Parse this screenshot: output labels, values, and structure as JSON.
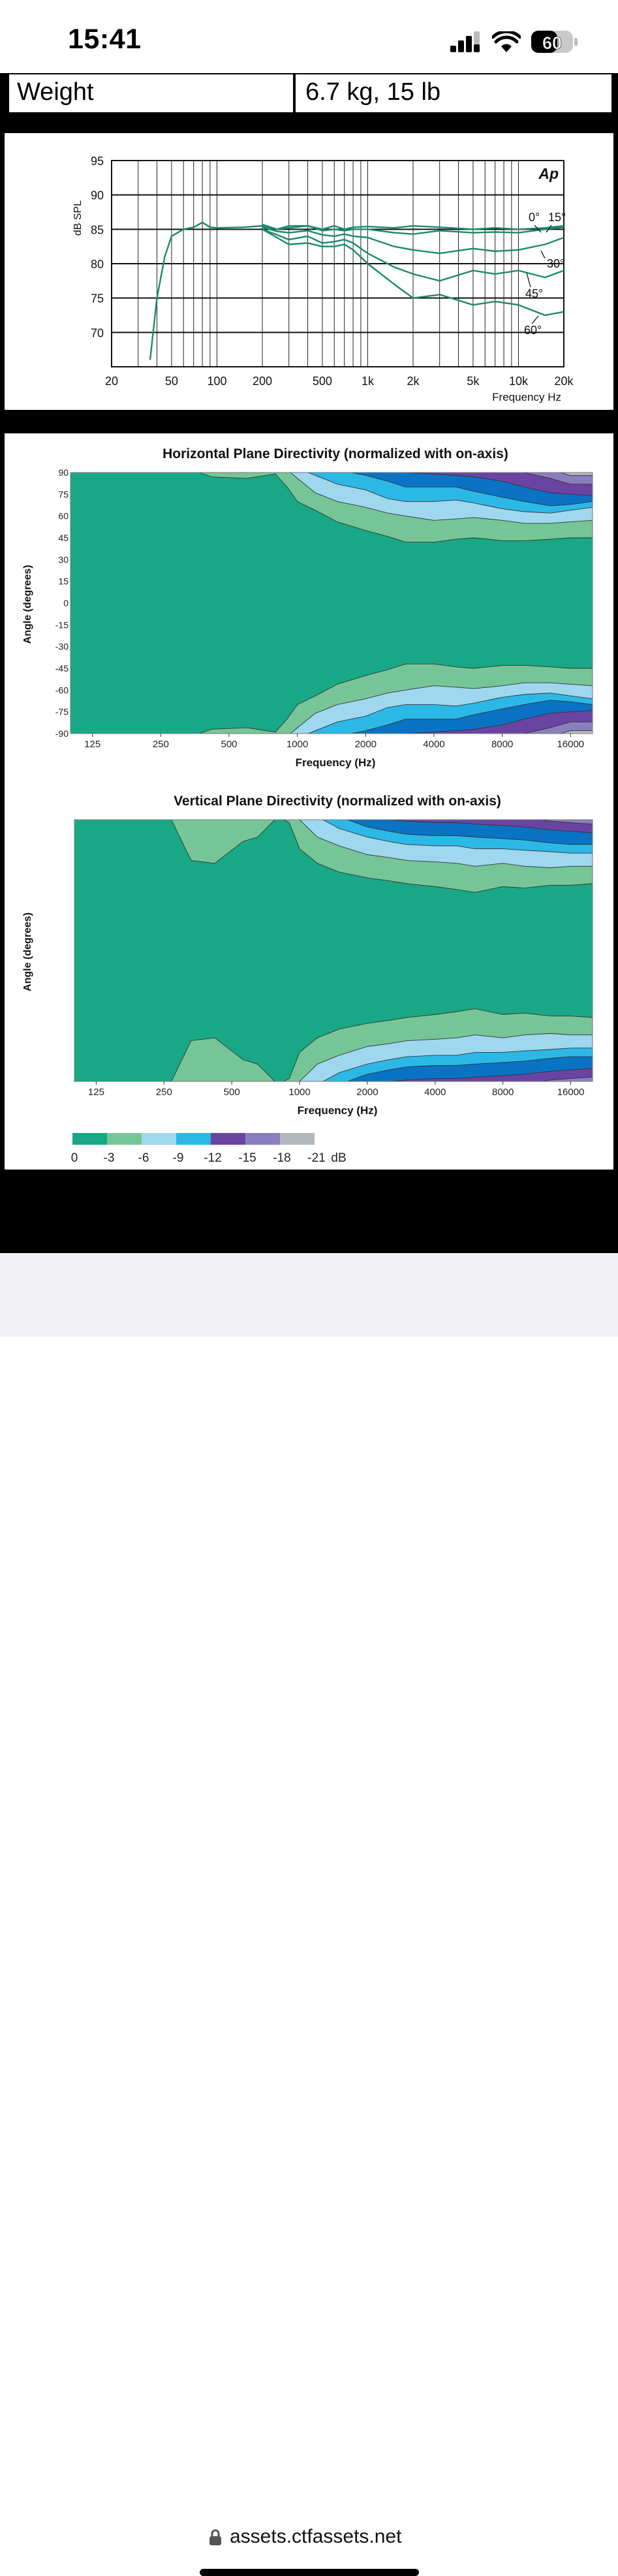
{
  "status_bar": {
    "time": "15:41",
    "battery": "60"
  },
  "spec_row": {
    "label": "Weight",
    "value": "6.7 kg, 15 lb"
  },
  "browser": {
    "url": "assets.ctfassets.net"
  },
  "colors": {
    "curve": "#1a8a6a",
    "levels": [
      "#18a886",
      "#76c597",
      "#9fd7ef",
      "#2cb8e6",
      "#0a73c4",
      "#6a44a2",
      "#8a7fbc",
      "#b4b9bd"
    ]
  },
  "chart_data": [
    {
      "type": "line",
      "title": "",
      "xlabel": "Frequency Hz",
      "ylabel": "dB SPL",
      "x_scale": "log",
      "xlim": [
        20,
        20000
      ],
      "ylim": [
        65,
        95
      ],
      "x_ticks": [
        20,
        50,
        100,
        200,
        500,
        1000,
        2000,
        5000,
        10000,
        20000
      ],
      "x_tick_labels": [
        "20",
        "50",
        "100",
        "200",
        "500",
        "1k",
        "2k",
        "5k",
        "10k",
        "20k"
      ],
      "y_ticks": [
        70,
        75,
        80,
        85,
        90,
        95
      ],
      "y_tick_labels": [
        "70",
        "75",
        "80",
        "85",
        "90",
        "95"
      ],
      "logo": "Ap",
      "grid": true,
      "series": [
        {
          "name": "0°",
          "x": [
            36,
            40,
            45,
            50,
            60,
            70,
            80,
            90,
            100,
            150,
            200,
            250,
            300,
            400,
            500,
            600,
            700,
            800,
            1000,
            1500,
            2000,
            3000,
            5000,
            7000,
            10000,
            15000,
            20000
          ],
          "y": [
            66,
            75,
            81,
            84,
            85,
            85.3,
            86,
            85.3,
            85.2,
            85.3,
            85.5,
            85,
            85.5,
            85.5,
            85,
            85.5,
            85,
            85.3,
            85.4,
            85.2,
            85.5,
            85.3,
            85,
            85.2,
            85,
            85.2,
            85.5
          ]
        },
        {
          "name": "15°",
          "x": [
            200,
            250,
            300,
            400,
            500,
            600,
            700,
            800,
            1000,
            1500,
            2000,
            3000,
            5000,
            7000,
            10000,
            15000,
            20000
          ],
          "y": [
            85.7,
            85,
            85.2,
            85.5,
            84.8,
            85,
            84.8,
            85,
            85,
            84.5,
            84.3,
            84.8,
            84.5,
            84.6,
            84.5,
            85,
            85.3
          ]
        },
        {
          "name": "30°",
          "x": [
            200,
            250,
            300,
            400,
            500,
            600,
            700,
            800,
            1000,
            1500,
            2000,
            3000,
            5000,
            7000,
            10000,
            15000,
            20000
          ],
          "y": [
            85.3,
            84.7,
            84.5,
            84.8,
            84.2,
            84,
            84.3,
            84,
            83.8,
            82.5,
            82,
            81.5,
            82.2,
            81.8,
            82,
            82.8,
            83.8
          ]
        },
        {
          "name": "45°",
          "x": [
            200,
            250,
            300,
            400,
            500,
            600,
            700,
            800,
            1000,
            1500,
            2000,
            3000,
            5000,
            7000,
            10000,
            15000,
            20000
          ],
          "y": [
            85,
            84.2,
            83.5,
            84,
            83,
            83.2,
            83.5,
            83,
            81.5,
            79.5,
            78.5,
            77.5,
            79,
            78.5,
            79,
            78,
            79
          ]
        },
        {
          "name": "60°",
          "x": [
            200,
            250,
            300,
            400,
            500,
            600,
            700,
            800,
            1000,
            1500,
            2000,
            3000,
            5000,
            7000,
            10000,
            15000,
            20000
          ],
          "y": [
            85,
            83.8,
            82.8,
            83,
            82.5,
            82.5,
            82.8,
            82,
            80,
            77,
            75,
            75.5,
            74,
            74.5,
            74,
            72.5,
            73
          ]
        }
      ]
    },
    {
      "type": "heatmap",
      "title": "Horizontal Plane Directivity (normalized with on-axis)",
      "xlabel": "Frequency (Hz)",
      "ylabel": "Angle (degrees)",
      "x_scale": "log",
      "xlim": [
        100,
        20000
      ],
      "ylim": [
        -90,
        90
      ],
      "x_ticks": [
        125,
        250,
        500,
        1000,
        2000,
        4000,
        8000,
        16000
      ],
      "x_tick_labels": [
        "125",
        "250",
        "500",
        "1000",
        "2000",
        "4000",
        "8000",
        "16000"
      ],
      "y_ticks": [
        90,
        75,
        60,
        45,
        30,
        15,
        0,
        -15,
        -30,
        -45,
        -60,
        -75,
        -90
      ],
      "y_tick_labels": [
        "90",
        "75",
        "60",
        "45",
        "30",
        "15",
        "0",
        "-15",
        "-30",
        "-45",
        "-60",
        "-75",
        "-90"
      ],
      "levels": [
        0,
        -3,
        -6,
        -9,
        -12,
        -15,
        -18,
        -21
      ],
      "contours": {
        "freq": [
          100,
          300,
          420,
          600,
          800,
          900,
          1000,
          1200,
          1500,
          2000,
          2500,
          3000,
          4000,
          5000,
          6000,
          8000,
          10000,
          13000,
          16000,
          20000
        ],
        "boundaries": [
          [
            95,
            95,
            87,
            86,
            89,
            80,
            70,
            64,
            56,
            50,
            46,
            42,
            42,
            44,
            45,
            43,
            43,
            44,
            45,
            45
          ],
          [
            95,
            95,
            95,
            95,
            95,
            92,
            86,
            76,
            70,
            66,
            62,
            60,
            57,
            58,
            59,
            57,
            55,
            55,
            56,
            57
          ],
          [
            95,
            95,
            95,
            95,
            95,
            95,
            93,
            88,
            82,
            78,
            72,
            70,
            70,
            71,
            69,
            65,
            63,
            62,
            64,
            66
          ],
          [
            95,
            95,
            95,
            95,
            95,
            95,
            95,
            95,
            92,
            88,
            84,
            80,
            80,
            80,
            77,
            73,
            70,
            67,
            68,
            70
          ],
          [
            95,
            95,
            95,
            95,
            95,
            95,
            95,
            95,
            95,
            95,
            93,
            90,
            89,
            88,
            87,
            84,
            80,
            76,
            75,
            74
          ],
          [
            95,
            95,
            95,
            95,
            95,
            95,
            95,
            95,
            95,
            95,
            95,
            95,
            95,
            95,
            95,
            95,
            90,
            86,
            82,
            82
          ],
          [
            95,
            95,
            95,
            95,
            95,
            95,
            95,
            95,
            95,
            95,
            95,
            95,
            95,
            95,
            95,
            95,
            95,
            92,
            88,
            88
          ]
        ],
        "mirror": true
      }
    },
    {
      "type": "heatmap",
      "title": "Vertical Plane Directivity (normalized with on-axis)",
      "xlabel": "Frequency (Hz)",
      "ylabel": "Angle (degrees)",
      "x_scale": "log",
      "xlim": [
        100,
        20000
      ],
      "ylim": [
        -90,
        90
      ],
      "x_ticks": [
        125,
        250,
        500,
        1000,
        2000,
        4000,
        8000,
        16000
      ],
      "x_tick_labels": [
        "125",
        "250",
        "500",
        "1000",
        "2000",
        "4000",
        "8000",
        "16000"
      ],
      "levels": [
        0,
        -3,
        -6,
        -9,
        -12,
        -15,
        -18,
        -21
      ],
      "contours": {
        "freq": [
          100,
          260,
          330,
          420,
          560,
          650,
          800,
          900,
          1000,
          1200,
          1500,
          2000,
          2500,
          3000,
          4000,
          5000,
          6000,
          8000,
          10000,
          13000,
          16000,
          20000
        ],
        "boundaries": [
          [
            95,
            95,
            62,
            60,
            75,
            78,
            92,
            88,
            70,
            60,
            54,
            50,
            48,
            46,
            44,
            42,
            40,
            44,
            43,
            45,
            45,
            46
          ],
          [
            95,
            95,
            95,
            95,
            95,
            95,
            95,
            95,
            90,
            78,
            72,
            66,
            64,
            62,
            61,
            60,
            58,
            60,
            58,
            57,
            58,
            58
          ],
          [
            95,
            95,
            95,
            95,
            95,
            95,
            95,
            95,
            95,
            92,
            84,
            78,
            75,
            73,
            72,
            72,
            70,
            70,
            69,
            68,
            67,
            67
          ],
          [
            95,
            95,
            95,
            95,
            95,
            95,
            95,
            95,
            95,
            95,
            92,
            85,
            82,
            80,
            79,
            79,
            78,
            77,
            76,
            74,
            73,
            73
          ],
          [
            95,
            95,
            95,
            95,
            95,
            95,
            95,
            95,
            95,
            95,
            95,
            93,
            90,
            89,
            88,
            88,
            87,
            86,
            85,
            83,
            82,
            81
          ],
          [
            95,
            95,
            95,
            95,
            95,
            95,
            95,
            95,
            95,
            95,
            95,
            95,
            95,
            95,
            95,
            95,
            95,
            95,
            92,
            89,
            88,
            87
          ],
          [
            95,
            95,
            95,
            95,
            95,
            95,
            95,
            95,
            95,
            95,
            95,
            95,
            95,
            95,
            95,
            95,
            95,
            95,
            95,
            93,
            92,
            92
          ]
        ],
        "mirror": true
      }
    }
  ],
  "legend": {
    "labels": [
      "0",
      "-3",
      "-6",
      "-9",
      "-12",
      "-15",
      "-18",
      "-21"
    ],
    "unit": "dB"
  }
}
